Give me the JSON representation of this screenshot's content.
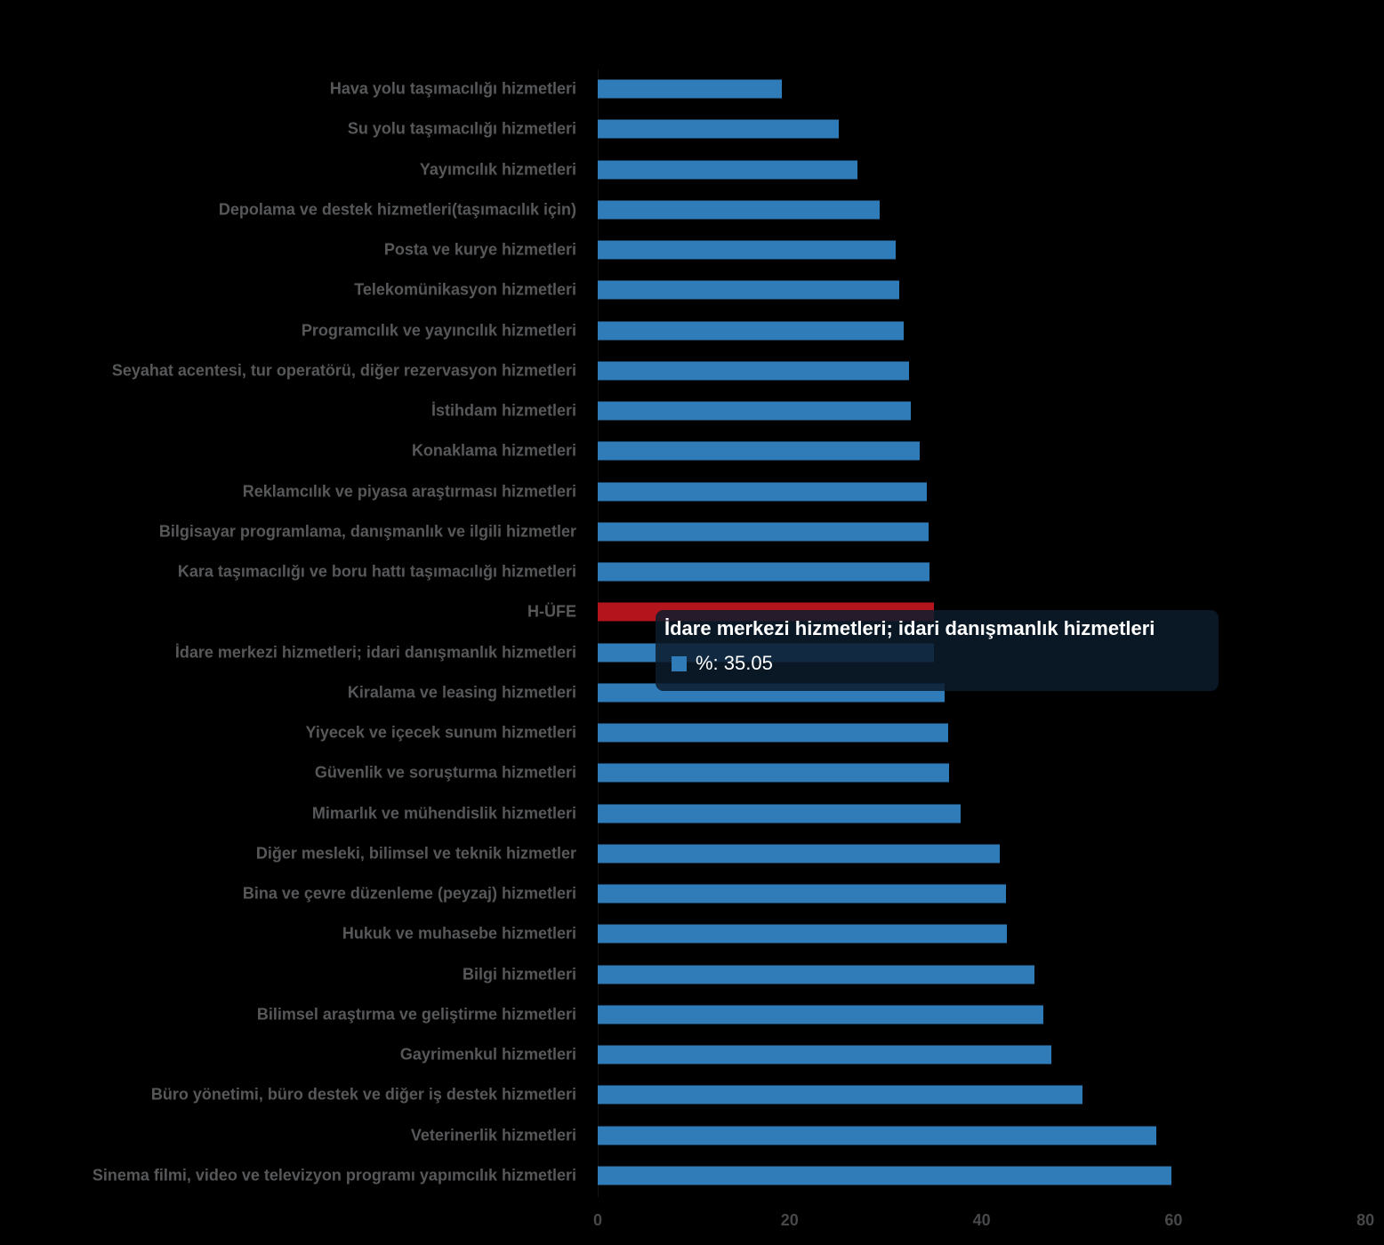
{
  "chart_data": {
    "type": "bar",
    "orientation": "horizontal",
    "xlabel": "",
    "ylabel": "",
    "xlim": [
      0,
      80
    ],
    "x_ticks": [
      0,
      20,
      40,
      60,
      80
    ],
    "grid": false,
    "legend_position": "none",
    "bar_color": "#2f7cb9",
    "highlight_color": "#b4141c",
    "label_color": "#57585a",
    "tick_color": "#47484a",
    "items": [
      {
        "label": "Hava yolu taşımacılığı hizmetleri",
        "value": 19.2,
        "highlight": false
      },
      {
        "label": "Su yolu taşımacılığı hizmetleri",
        "value": 25.1,
        "highlight": false
      },
      {
        "label": "Yayımcılık hizmetleri",
        "value": 27.1,
        "highlight": false
      },
      {
        "label": "Depolama ve destek hizmetleri(taşımacılık için)",
        "value": 29.4,
        "highlight": false
      },
      {
        "label": "Posta ve kurye hizmetleri",
        "value": 31.0,
        "highlight": false
      },
      {
        "label": "Telekomünikasyon hizmetleri",
        "value": 31.4,
        "highlight": false
      },
      {
        "label": "Programcılık ve yayıncılık hizmetleri",
        "value": 31.9,
        "highlight": false
      },
      {
        "label": "Seyahat acentesi, tur operatörü, diğer rezervasyon hizmetleri",
        "value": 32.4,
        "highlight": false
      },
      {
        "label": "İstihdam hizmetleri",
        "value": 32.6,
        "highlight": false
      },
      {
        "label": "Konaklama hizmetleri",
        "value": 33.5,
        "highlight": false
      },
      {
        "label": "Reklamcılık ve piyasa araştırması hizmetleri",
        "value": 34.3,
        "highlight": false
      },
      {
        "label": "Bilgisayar programlama, danışmanlık ve ilgili hizmetler",
        "value": 34.5,
        "highlight": false
      },
      {
        "label": "Kara taşımacılığı ve boru hattı taşımacılığı hizmetleri",
        "value": 34.6,
        "highlight": false
      },
      {
        "label": "H-ÜFE",
        "value": 35.0,
        "highlight": true
      },
      {
        "label": "İdare merkezi hizmetleri; idari danışmanlık hizmetleri",
        "value": 35.05,
        "highlight": false
      },
      {
        "label": "Kiralama ve leasing hizmetleri",
        "value": 36.1,
        "highlight": false
      },
      {
        "label": "Yiyecek ve içecek sunum hizmetleri",
        "value": 36.5,
        "highlight": false
      },
      {
        "label": "Güvenlik ve soruşturma hizmetleri",
        "value": 36.6,
        "highlight": false
      },
      {
        "label": "Mimarlık ve mühendislik hizmetleri",
        "value": 37.8,
        "highlight": false
      },
      {
        "label": "Diğer mesleki, bilimsel ve teknik hizmetler",
        "value": 41.9,
        "highlight": false
      },
      {
        "label": "Bina ve çevre düzenleme (peyzaj) hizmetleri",
        "value": 42.5,
        "highlight": false
      },
      {
        "label": "Hukuk ve muhasebe hizmetleri",
        "value": 42.6,
        "highlight": false
      },
      {
        "label": "Bilgi hizmetleri",
        "value": 45.5,
        "highlight": false
      },
      {
        "label": "Bilimsel araştırma ve geliştirme hizmetleri",
        "value": 46.4,
        "highlight": false
      },
      {
        "label": "Gayrimenkul hizmetleri",
        "value": 47.3,
        "highlight": false
      },
      {
        "label": "Büro yönetimi, büro destek ve diğer iş destek hizmetleri",
        "value": 50.5,
        "highlight": false
      },
      {
        "label": "Veterinerlik hizmetleri",
        "value": 58.2,
        "highlight": false
      },
      {
        "label": "Sinema filmi, video ve televizyon programı yapımcılık hizmetleri",
        "value": 59.8,
        "highlight": false
      }
    ]
  },
  "tooltip": {
    "title": "İdare merkezi hizmetleri; idari danışmanlık hizmetleri",
    "value_display": "%: 35.05",
    "marker_color": "#2f7cb9"
  }
}
